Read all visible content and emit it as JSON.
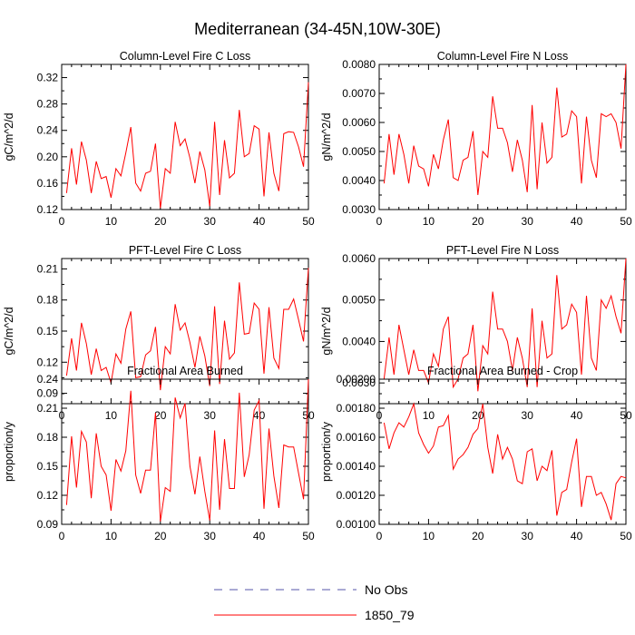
{
  "title": "Mediterranean (34-45N,10W-30E)",
  "chart_data": [
    {
      "type": "line",
      "title": "Column-Level Fire C Loss",
      "ylabel": "gC/m^2/d",
      "xlim": [
        0,
        50
      ],
      "ylim": [
        0.12,
        0.34
      ],
      "xticks": [
        "0",
        "10",
        "20",
        "30",
        "40",
        "50"
      ],
      "xtick_values": [
        0,
        10,
        20,
        30,
        40,
        50
      ],
      "yticks": [
        "0.12",
        "0.16",
        "0.20",
        "0.24",
        "0.28",
        "0.32"
      ],
      "ytick_values": [
        0.12,
        0.16,
        0.2,
        0.24,
        0.28,
        0.32
      ],
      "series": [
        {
          "name": "1850_79",
          "color": "#ff0000",
          "x_start": 1,
          "values": [
            0.145,
            0.213,
            0.158,
            0.223,
            0.195,
            0.145,
            0.193,
            0.167,
            0.17,
            0.138,
            0.182,
            0.171,
            0.206,
            0.245,
            0.16,
            0.148,
            0.175,
            0.178,
            0.22,
            0.122,
            0.182,
            0.175,
            0.253,
            0.217,
            0.227,
            0.198,
            0.16,
            0.208,
            0.18,
            0.125,
            0.253,
            0.142,
            0.225,
            0.168,
            0.175,
            0.271,
            0.2,
            0.205,
            0.247,
            0.242,
            0.14,
            0.237,
            0.175,
            0.148,
            0.235,
            0.238,
            0.237,
            0.215,
            0.185,
            0.313
          ]
        }
      ]
    },
    {
      "type": "line",
      "title": "Column-Level Fire N Loss",
      "ylabel": "gN/m^2/d",
      "xlim": [
        0,
        50
      ],
      "ylim": [
        0.003,
        0.008
      ],
      "xticks": [
        "0",
        "10",
        "20",
        "30",
        "40",
        "50"
      ],
      "xtick_values": [
        0,
        10,
        20,
        30,
        40,
        50
      ],
      "yticks": [
        "0.0030",
        "0.0040",
        "0.0050",
        "0.0060",
        "0.0070",
        "0.0080"
      ],
      "ytick_values": [
        0.003,
        0.004,
        0.005,
        0.006,
        0.007,
        0.008
      ],
      "series": [
        {
          "name": "1850_79",
          "color": "#ff0000",
          "x_start": 1,
          "values": [
            0.0039,
            0.0056,
            0.0042,
            0.0056,
            0.0049,
            0.0039,
            0.0052,
            0.0045,
            0.0044,
            0.0038,
            0.0049,
            0.0044,
            0.0054,
            0.0061,
            0.0041,
            0.004,
            0.0047,
            0.0048,
            0.0057,
            0.0035,
            0.005,
            0.0048,
            0.0069,
            0.0058,
            0.0058,
            0.0053,
            0.0043,
            0.0054,
            0.0047,
            0.0036,
            0.0066,
            0.0037,
            0.006,
            0.0046,
            0.0048,
            0.0072,
            0.0055,
            0.0056,
            0.0064,
            0.0062,
            0.0039,
            0.0062,
            0.0047,
            0.0041,
            0.0063,
            0.0062,
            0.0063,
            0.006,
            0.0051,
            0.008
          ]
        }
      ]
    },
    {
      "type": "line",
      "title": "PFT-Level Fire C Loss",
      "ylabel": "gC/m^2/d",
      "xlim": [
        0,
        50
      ],
      "ylim": [
        0.08,
        0.22
      ],
      "xticks": [
        "0",
        "10",
        "20",
        "30",
        "40",
        "50"
      ],
      "xtick_values": [
        0,
        10,
        20,
        30,
        40,
        50
      ],
      "yticks": [
        "0.09",
        "0.12",
        "0.15",
        "0.18",
        "0.21"
      ],
      "ytick_values": [
        0.09,
        0.12,
        0.15,
        0.18,
        0.21
      ],
      "series": [
        {
          "name": "1850_79",
          "color": "#ff0000",
          "x_start": 1,
          "values": [
            0.107,
            0.143,
            0.112,
            0.158,
            0.138,
            0.108,
            0.133,
            0.112,
            0.115,
            0.1,
            0.128,
            0.119,
            0.152,
            0.169,
            0.105,
            0.106,
            0.127,
            0.131,
            0.154,
            0.093,
            0.135,
            0.128,
            0.176,
            0.151,
            0.158,
            0.139,
            0.115,
            0.145,
            0.126,
            0.097,
            0.174,
            0.099,
            0.16,
            0.123,
            0.129,
            0.197,
            0.147,
            0.148,
            0.177,
            0.171,
            0.109,
            0.173,
            0.124,
            0.114,
            0.171,
            0.171,
            0.181,
            0.161,
            0.14,
            0.211
          ]
        }
      ]
    },
    {
      "type": "line",
      "title": "PFT-Level Fire N Loss",
      "ylabel": "gN/m^2/d",
      "xlim": [
        0,
        50
      ],
      "ylim": [
        0.0025,
        0.006
      ],
      "xticks": [
        "0",
        "10",
        "20",
        "30",
        "40",
        "50"
      ],
      "xtick_values": [
        0,
        10,
        20,
        30,
        40,
        50
      ],
      "yticks": [
        "0.0030",
        "0.0040",
        "0.0050",
        "0.0060"
      ],
      "ytick_values": [
        0.003,
        0.004,
        0.005,
        0.006
      ],
      "series": [
        {
          "name": "1850_79",
          "color": "#ff0000",
          "x_start": 1,
          "values": [
            0.0031,
            0.0041,
            0.0032,
            0.0044,
            0.0038,
            0.0032,
            0.0038,
            0.0033,
            0.0033,
            0.003,
            0.0037,
            0.0034,
            0.0043,
            0.0046,
            0.0029,
            0.0031,
            0.0036,
            0.0037,
            0.0044,
            0.0028,
            0.0039,
            0.0037,
            0.0052,
            0.0043,
            0.0043,
            0.004,
            0.0033,
            0.0041,
            0.0036,
            0.0029,
            0.0048,
            0.0029,
            0.0045,
            0.0036,
            0.0037,
            0.0056,
            0.0043,
            0.0044,
            0.0049,
            0.0047,
            0.0032,
            0.0051,
            0.0036,
            0.0033,
            0.005,
            0.0048,
            0.0051,
            0.0046,
            0.0042,
            0.006
          ]
        }
      ]
    },
    {
      "type": "line",
      "title": "Fractional Area Burned",
      "ylabel": "proportion/y",
      "xlim": [
        0,
        50
      ],
      "ylim": [
        0.09,
        0.24
      ],
      "xticks": [
        "0",
        "10",
        "20",
        "30",
        "40",
        "50"
      ],
      "xtick_values": [
        0,
        10,
        20,
        30,
        40,
        50
      ],
      "yticks": [
        "0.09",
        "0.12",
        "0.15",
        "0.18",
        "0.21",
        "0.24"
      ],
      "ytick_values": [
        0.09,
        0.12,
        0.15,
        0.18,
        0.21,
        0.24
      ],
      "series": [
        {
          "name": "1850_79",
          "color": "#ff0000",
          "x_start": 1,
          "values": [
            0.11,
            0.181,
            0.128,
            0.186,
            0.175,
            0.117,
            0.184,
            0.15,
            0.141,
            0.104,
            0.157,
            0.145,
            0.166,
            0.228,
            0.141,
            0.122,
            0.146,
            0.146,
            0.205,
            0.093,
            0.128,
            0.124,
            0.221,
            0.2,
            0.215,
            0.15,
            0.121,
            0.16,
            0.124,
            0.094,
            0.187,
            0.105,
            0.178,
            0.127,
            0.127,
            0.226,
            0.139,
            0.162,
            0.208,
            0.218,
            0.106,
            0.189,
            0.14,
            0.107,
            0.172,
            0.17,
            0.17,
            0.143,
            0.116,
            0.24
          ]
        }
      ]
    },
    {
      "type": "line",
      "title": "Fractional Area Burned - Crop",
      "ylabel": "proportion/y",
      "xlim": [
        0,
        50
      ],
      "ylim": [
        0.001,
        0.002
      ],
      "xticks": [
        "0",
        "10",
        "20",
        "30",
        "40",
        "50"
      ],
      "xtick_values": [
        0,
        10,
        20,
        30,
        40,
        50
      ],
      "yticks": [
        "0.00100",
        "0.00120",
        "0.00140",
        "0.00160",
        "0.00180",
        "0.00200"
      ],
      "ytick_values": [
        0.001,
        0.0012,
        0.0014,
        0.0016,
        0.0018,
        0.002
      ],
      "series": [
        {
          "name": "1850_79",
          "color": "#ff0000",
          "x_start": 1,
          "values": [
            0.0017,
            0.00152,
            0.00163,
            0.0017,
            0.00167,
            0.00174,
            0.00183,
            0.00163,
            0.00155,
            0.00149,
            0.00154,
            0.00167,
            0.00168,
            0.00175,
            0.00138,
            0.00145,
            0.00148,
            0.00153,
            0.00162,
            0.00166,
            0.00183,
            0.00153,
            0.00135,
            0.00162,
            0.00145,
            0.00153,
            0.00145,
            0.0013,
            0.00128,
            0.0015,
            0.00152,
            0.0013,
            0.0014,
            0.00137,
            0.00151,
            0.00106,
            0.00122,
            0.00124,
            0.00143,
            0.00159,
            0.00112,
            0.00133,
            0.00133,
            0.0012,
            0.00122,
            0.00114,
            0.00103,
            0.00128,
            0.00133,
            0.00132
          ]
        }
      ]
    }
  ],
  "legend": [
    {
      "label": "No Obs",
      "color": "#5555aa",
      "style": "dashed"
    },
    {
      "label": "1850_79",
      "color": "#ff0000",
      "style": "solid"
    }
  ]
}
